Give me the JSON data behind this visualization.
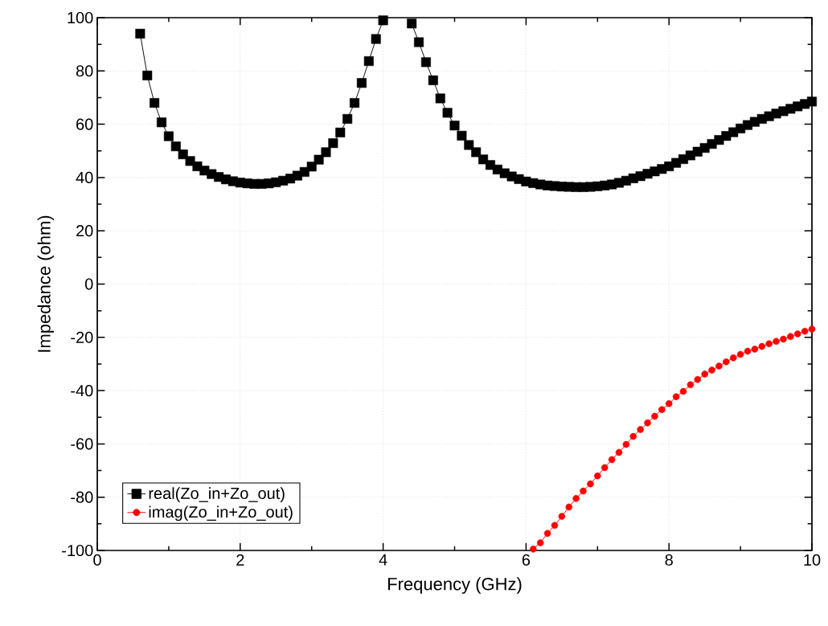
{
  "chart_data": {
    "type": "line",
    "xlabel": "Frequency (GHz)",
    "ylabel": "Impedance (ohm)",
    "xlim": [
      0,
      10
    ],
    "xticks": [
      0,
      2,
      4,
      6,
      8,
      10
    ],
    "ylim": [
      -100,
      100
    ],
    "yticks": [
      -100,
      -80,
      -60,
      -40,
      -20,
      0,
      20,
      40,
      60,
      80,
      100
    ],
    "grid": true,
    "legend": "bottom left",
    "line_style": "solid",
    "series": [
      {
        "name": "real(Zo_in+Zo_out)",
        "color": "#000000",
        "marker": "square",
        "x": [
          0.6,
          0.7,
          0.8,
          0.9,
          1.0,
          1.1,
          1.2,
          1.3,
          1.4,
          1.5,
          1.6,
          1.7,
          1.8,
          1.9,
          2.0,
          2.1,
          2.2,
          2.3,
          2.4,
          2.5,
          2.6,
          2.7,
          2.8,
          2.9,
          3.0,
          3.1,
          3.2,
          3.3,
          3.4,
          3.5,
          3.6,
          3.7,
          3.8,
          3.9,
          4.0,
          4.1,
          4.2,
          4.3,
          4.4,
          4.5,
          4.6,
          4.7,
          4.8,
          4.9,
          5.0,
          5.1,
          5.2,
          5.3,
          5.4,
          5.5,
          5.6,
          5.7,
          5.8,
          5.9,
          6.0,
          6.1,
          6.2,
          6.3,
          6.4,
          6.5,
          6.6,
          6.7,
          6.8,
          6.9,
          7.0,
          7.1,
          7.2,
          7.3,
          7.4,
          7.5,
          7.6,
          7.7,
          7.8,
          7.9,
          8.0,
          8.1,
          8.2,
          8.3,
          8.4,
          8.5,
          8.6,
          8.7,
          8.8,
          8.9,
          9.0,
          9.1,
          9.2,
          9.3,
          9.4,
          9.5,
          9.6,
          9.7,
          9.8,
          9.9,
          10.0
        ],
        "values": [
          94,
          78.3,
          68,
          60.7,
          55.5,
          51.7,
          48.7,
          46.2,
          44.2,
          42.6,
          41.3,
          40.2,
          39.3,
          38.6,
          38.1,
          37.8,
          37.6,
          37.6,
          37.8,
          38.2,
          38.8,
          39.6,
          40.7,
          42.1,
          44.1,
          46.7,
          49.5,
          52.9,
          56.9,
          62,
          68,
          75.5,
          83.7,
          92,
          99,
          null,
          null,
          null,
          97.8,
          90.8,
          83.3,
          76.5,
          69.7,
          64.3,
          59.5,
          55.7,
          52.2,
          49.5,
          46.8,
          44.7,
          43,
          41.6,
          40.4,
          39.4,
          38.5,
          37.9,
          37.4,
          37,
          36.8,
          36.6,
          36.5,
          36.4,
          36.4,
          36.5,
          36.7,
          37,
          37.4,
          38,
          38.8,
          39.7,
          40.5,
          41.4,
          42.3,
          43.2,
          44.2,
          45.5,
          46.9,
          48.3,
          49.7,
          51.1,
          52.6,
          54.1,
          55.6,
          57,
          58.4,
          59.7,
          60.9,
          62,
          63,
          64,
          64.9,
          65.8,
          66.7,
          67.6,
          68.5
        ]
      },
      {
        "name": "imag(Zo_in+Zo_out)",
        "color": "#ff0000",
        "marker": "circle",
        "x": [
          6.1,
          6.2,
          6.3,
          6.4,
          6.5,
          6.6,
          6.7,
          6.8,
          6.9,
          7.0,
          7.1,
          7.2,
          7.3,
          7.4,
          7.5,
          7.6,
          7.7,
          7.8,
          7.9,
          8.0,
          8.1,
          8.2,
          8.3,
          8.4,
          8.5,
          8.6,
          8.7,
          8.8,
          8.9,
          9.0,
          9.1,
          9.2,
          9.3,
          9.4,
          9.5,
          9.6,
          9.7,
          9.8,
          9.9,
          10.0
        ],
        "values": [
          -99.5,
          -97.1,
          -93.6,
          -90.6,
          -87.2,
          -83.7,
          -80.5,
          -77.7,
          -75,
          -72,
          -68.9,
          -65.9,
          -63.2,
          -60.2,
          -57.2,
          -54.6,
          -52.1,
          -49.6,
          -47.1,
          -44.9,
          -42.3,
          -40.3,
          -37.8,
          -35.8,
          -33.8,
          -32.3,
          -30.8,
          -29.2,
          -27.7,
          -26.4,
          -25.2,
          -24.4,
          -23.4,
          -22.4,
          -21.5,
          -20.7,
          -19.7,
          -18.7,
          -17.7,
          -16.9
        ]
      }
    ]
  }
}
